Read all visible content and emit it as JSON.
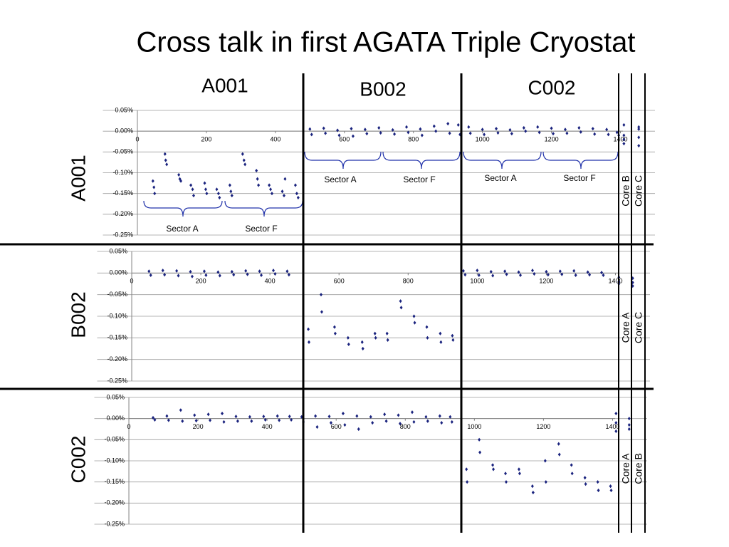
{
  "title": "Cross talk in first AGATA Triple Cryostat",
  "columns": [
    "A001",
    "B002",
    "C002"
  ],
  "rows": [
    "A001",
    "B002",
    "C002"
  ],
  "chart_data": [
    {
      "type": "scatter",
      "color": "#1a237e",
      "grid": true,
      "xlim": [
        -100,
        1500
      ],
      "xticks": [
        0,
        200,
        400,
        600,
        800,
        1000,
        1200,
        1400
      ],
      "ylim": [
        -0.25,
        0.05
      ],
      "yticks": [
        {
          "value": 0.05,
          "label": "0.05%"
        },
        {
          "value": 0,
          "label": "0.00%"
        },
        {
          "value": -0.05,
          "label": "-0.05%"
        },
        {
          "value": -0.1,
          "label": "-0.10%"
        },
        {
          "value": -0.15,
          "label": "-0.15%"
        },
        {
          "value": -0.2,
          "label": "-0.20%"
        },
        {
          "value": -0.25,
          "label": "-0.25%"
        }
      ],
      "annotations": [
        "Sector A",
        "Sector F",
        "Sector A",
        "Sector F",
        "Sector A",
        "Sector F",
        "Core B",
        "Core C"
      ],
      "x": [
        45,
        48,
        50,
        80,
        82,
        85,
        120,
        123,
        126,
        155,
        160,
        163,
        195,
        198,
        201,
        230,
        235,
        238,
        268,
        271,
        274,
        305,
        309,
        312,
        345,
        348,
        351,
        382,
        386,
        390,
        420,
        425,
        428,
        458,
        462,
        466,
        500,
        505,
        540,
        545,
        580,
        585,
        620,
        625,
        660,
        665,
        700,
        705,
        740,
        745,
        780,
        785,
        820,
        825,
        860,
        865,
        900,
        905,
        930,
        935,
        960,
        965,
        1000,
        1005,
        1040,
        1045,
        1080,
        1085,
        1120,
        1125,
        1160,
        1165,
        1200,
        1205,
        1240,
        1245,
        1280,
        1285,
        1320,
        1325,
        1360,
        1365,
        1390,
        1395,
        1410,
        1410,
        1410,
        1410,
        1453,
        1453,
        1453,
        1453
      ],
      "values": [
        -0.12,
        -0.135,
        -0.15,
        -0.055,
        -0.07,
        -0.08,
        -0.105,
        -0.115,
        -0.12,
        -0.13,
        -0.14,
        -0.155,
        -0.125,
        -0.14,
        -0.15,
        -0.14,
        -0.15,
        -0.16,
        -0.13,
        -0.145,
        -0.155,
        -0.055,
        -0.07,
        -0.08,
        -0.095,
        -0.115,
        -0.13,
        -0.13,
        -0.14,
        -0.15,
        -0.145,
        -0.155,
        -0.115,
        -0.13,
        -0.15,
        -0.16,
        0.005,
        -0.008,
        0.007,
        -0.005,
        0.002,
        -0.01,
        0.006,
        -0.012,
        0.004,
        -0.006,
        0.008,
        -0.004,
        0.003,
        -0.007,
        0.01,
        -0.003,
        0.005,
        -0.01,
        0.012,
        0.0,
        0.018,
        -0.005,
        0.015,
        -0.008,
        0.01,
        -0.005,
        0.004,
        -0.008,
        0.006,
        -0.004,
        0.003,
        -0.006,
        0.008,
        0.0,
        0.01,
        -0.003,
        0.007,
        -0.006,
        0.004,
        -0.005,
        0.008,
        -0.002,
        0.006,
        -0.007,
        0.004,
        -0.008,
        -0.003,
        -0.01,
        0.015,
        -0.01,
        -0.03,
        -0.02,
        0.01,
        -0.015,
        -0.035,
        0.005
      ]
    },
    {
      "type": "scatter",
      "color": "#1a237e",
      "grid": true,
      "xlim": [
        -100,
        1500
      ],
      "xticks": [
        0,
        200,
        400,
        600,
        800,
        1000,
        1200,
        1400
      ],
      "ylim": [
        -0.25,
        0.05
      ],
      "yticks": [
        {
          "value": 0.05,
          "label": "0.05%"
        },
        {
          "value": 0,
          "label": "0.00%"
        },
        {
          "value": -0.05,
          "label": "-0.05%"
        },
        {
          "value": -0.1,
          "label": "-0.10%"
        },
        {
          "value": -0.15,
          "label": "-0.15%"
        },
        {
          "value": -0.2,
          "label": "-0.20%"
        },
        {
          "value": -0.25,
          "label": "-0.25%"
        }
      ],
      "annotations": [
        "Core A",
        "Core C"
      ],
      "x": [
        50,
        55,
        90,
        95,
        130,
        135,
        170,
        175,
        210,
        215,
        250,
        255,
        290,
        295,
        330,
        335,
        370,
        375,
        410,
        415,
        450,
        455,
        511,
        513,
        548,
        550,
        587,
        589,
        626,
        628,
        667,
        669,
        704,
        706,
        739,
        741,
        778,
        780,
        817,
        819,
        854,
        856,
        893,
        895,
        928,
        930,
        960,
        965,
        1000,
        1005,
        1040,
        1045,
        1080,
        1085,
        1120,
        1125,
        1160,
        1165,
        1200,
        1205,
        1240,
        1245,
        1280,
        1285,
        1320,
        1325,
        1360,
        1365,
        1410,
        1410,
        1410,
        1450,
        1450,
        1450
      ],
      "values": [
        0.004,
        -0.005,
        0.006,
        -0.004,
        0.005,
        -0.006,
        0.003,
        -0.008,
        0.004,
        -0.005,
        0.002,
        -0.006,
        0.003,
        -0.004,
        0.005,
        -0.003,
        0.004,
        -0.005,
        0.006,
        -0.002,
        0.004,
        -0.004,
        -0.13,
        -0.16,
        -0.05,
        -0.09,
        -0.125,
        -0.14,
        -0.15,
        -0.165,
        -0.16,
        -0.175,
        -0.14,
        -0.15,
        -0.14,
        -0.155,
        -0.065,
        -0.08,
        -0.1,
        -0.115,
        -0.125,
        -0.15,
        -0.14,
        -0.16,
        -0.145,
        -0.155,
        0.005,
        -0.004,
        0.006,
        -0.005,
        0.003,
        -0.006,
        0.004,
        -0.003,
        0.002,
        -0.005,
        0.006,
        -0.002,
        0.003,
        -0.004,
        0.004,
        -0.003,
        0.005,
        -0.005,
        0.002,
        -0.004,
        0.001,
        -0.005,
        -0.01,
        -0.02,
        -0.025,
        -0.012,
        -0.022,
        -0.03
      ]
    },
    {
      "type": "scatter",
      "color": "#1a237e",
      "grid": true,
      "xlim": [
        -100,
        1500
      ],
      "xticks": [
        0,
        200,
        400,
        600,
        800,
        1000,
        1200,
        1400
      ],
      "ylim": [
        -0.25,
        0.05
      ],
      "yticks": [
        {
          "value": 0.05,
          "label": "0.05%"
        },
        {
          "value": 0,
          "label": "0.00%"
        },
        {
          "value": -0.05,
          "label": "-0.05%"
        },
        {
          "value": -0.1,
          "label": "-0.10%"
        },
        {
          "value": -0.15,
          "label": "-0.15%"
        },
        {
          "value": -0.2,
          "label": "-0.20%"
        },
        {
          "value": -0.25,
          "label": "-0.25%"
        }
      ],
      "annotations": [
        "Core A",
        "Core B"
      ],
      "x": [
        70,
        75,
        110,
        115,
        150,
        155,
        190,
        195,
        230,
        235,
        270,
        275,
        310,
        315,
        350,
        355,
        390,
        395,
        430,
        435,
        465,
        470,
        500,
        505,
        540,
        545,
        580,
        585,
        620,
        625,
        660,
        665,
        700,
        705,
        740,
        745,
        780,
        785,
        820,
        825,
        860,
        865,
        900,
        905,
        930,
        935,
        977,
        979,
        1014,
        1016,
        1053,
        1055,
        1090,
        1092,
        1129,
        1131,
        1168,
        1170,
        1205,
        1207,
        1244,
        1246,
        1281,
        1283,
        1320,
        1322,
        1357,
        1359,
        1394,
        1396,
        1410,
        1410,
        1410,
        1448,
        1448,
        1448
      ],
      "values": [
        0.002,
        -0.003,
        0.006,
        -0.004,
        0.02,
        -0.006,
        0.008,
        -0.005,
        0.01,
        -0.004,
        0.012,
        -0.008,
        0.005,
        -0.006,
        0.004,
        -0.006,
        0.005,
        -0.003,
        0.006,
        -0.004,
        0.005,
        -0.003,
        0.004,
        -0.008,
        0.006,
        -0.02,
        0.005,
        -0.01,
        0.012,
        -0.015,
        0.006,
        -0.025,
        0.004,
        -0.01,
        0.01,
        -0.006,
        0.008,
        -0.012,
        0.015,
        -0.008,
        0.004,
        -0.006,
        0.006,
        -0.01,
        0.004,
        -0.008,
        -0.12,
        -0.15,
        -0.05,
        -0.08,
        -0.11,
        -0.12,
        -0.13,
        -0.15,
        -0.12,
        -0.13,
        -0.16,
        -0.175,
        -0.1,
        -0.15,
        -0.06,
        -0.085,
        -0.11,
        -0.13,
        -0.14,
        -0.155,
        -0.15,
        -0.17,
        -0.16,
        -0.17,
        0.012,
        -0.01,
        -0.03,
        0.0,
        -0.015,
        -0.025
      ]
    }
  ]
}
